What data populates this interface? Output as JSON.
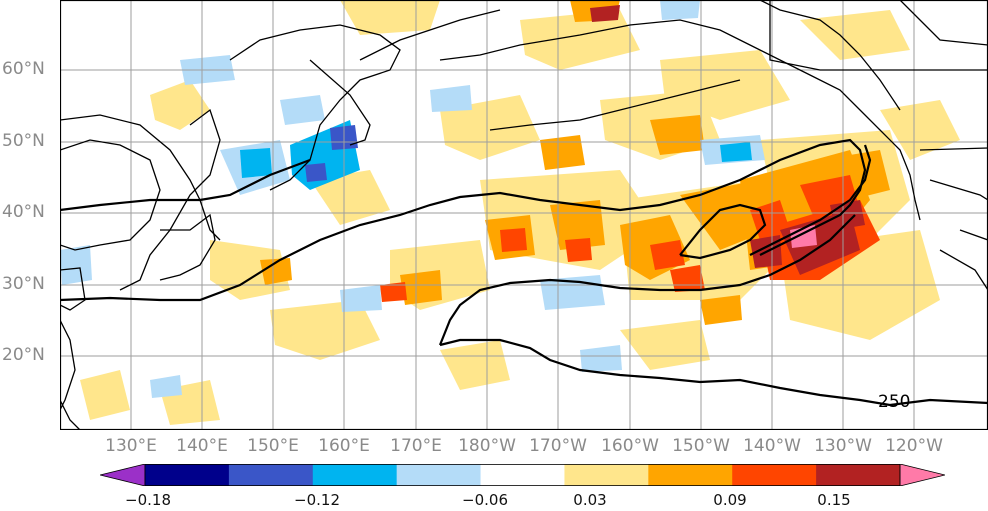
{
  "map": {
    "contour_label": "250",
    "lat_labels": [
      "60°N",
      "50°N",
      "40°N",
      "30°N",
      "20°N"
    ],
    "lon_labels": [
      "130°E",
      "140°E",
      "150°E",
      "160°E",
      "170°E",
      "180°W",
      "170°W",
      "160°W",
      "150°W",
      "140°W",
      "130°W",
      "120°W"
    ],
    "colors": {
      "coast": "#000000",
      "grid": "#9e9e9e",
      "contour": "#000000"
    }
  },
  "colorbar": {
    "colors": [
      "#9b30c8",
      "#00008b",
      "#3a56c8",
      "#00b4f0",
      "#b4dcf8",
      "#ffffff",
      "#ffe68c",
      "#ffa500",
      "#ff4500",
      "#b22222",
      "#ff7aa8"
    ],
    "ticks": [
      "−0.18",
      "−0.12",
      "−0.06",
      "0.03",
      "0.09",
      "0.15"
    ]
  }
}
